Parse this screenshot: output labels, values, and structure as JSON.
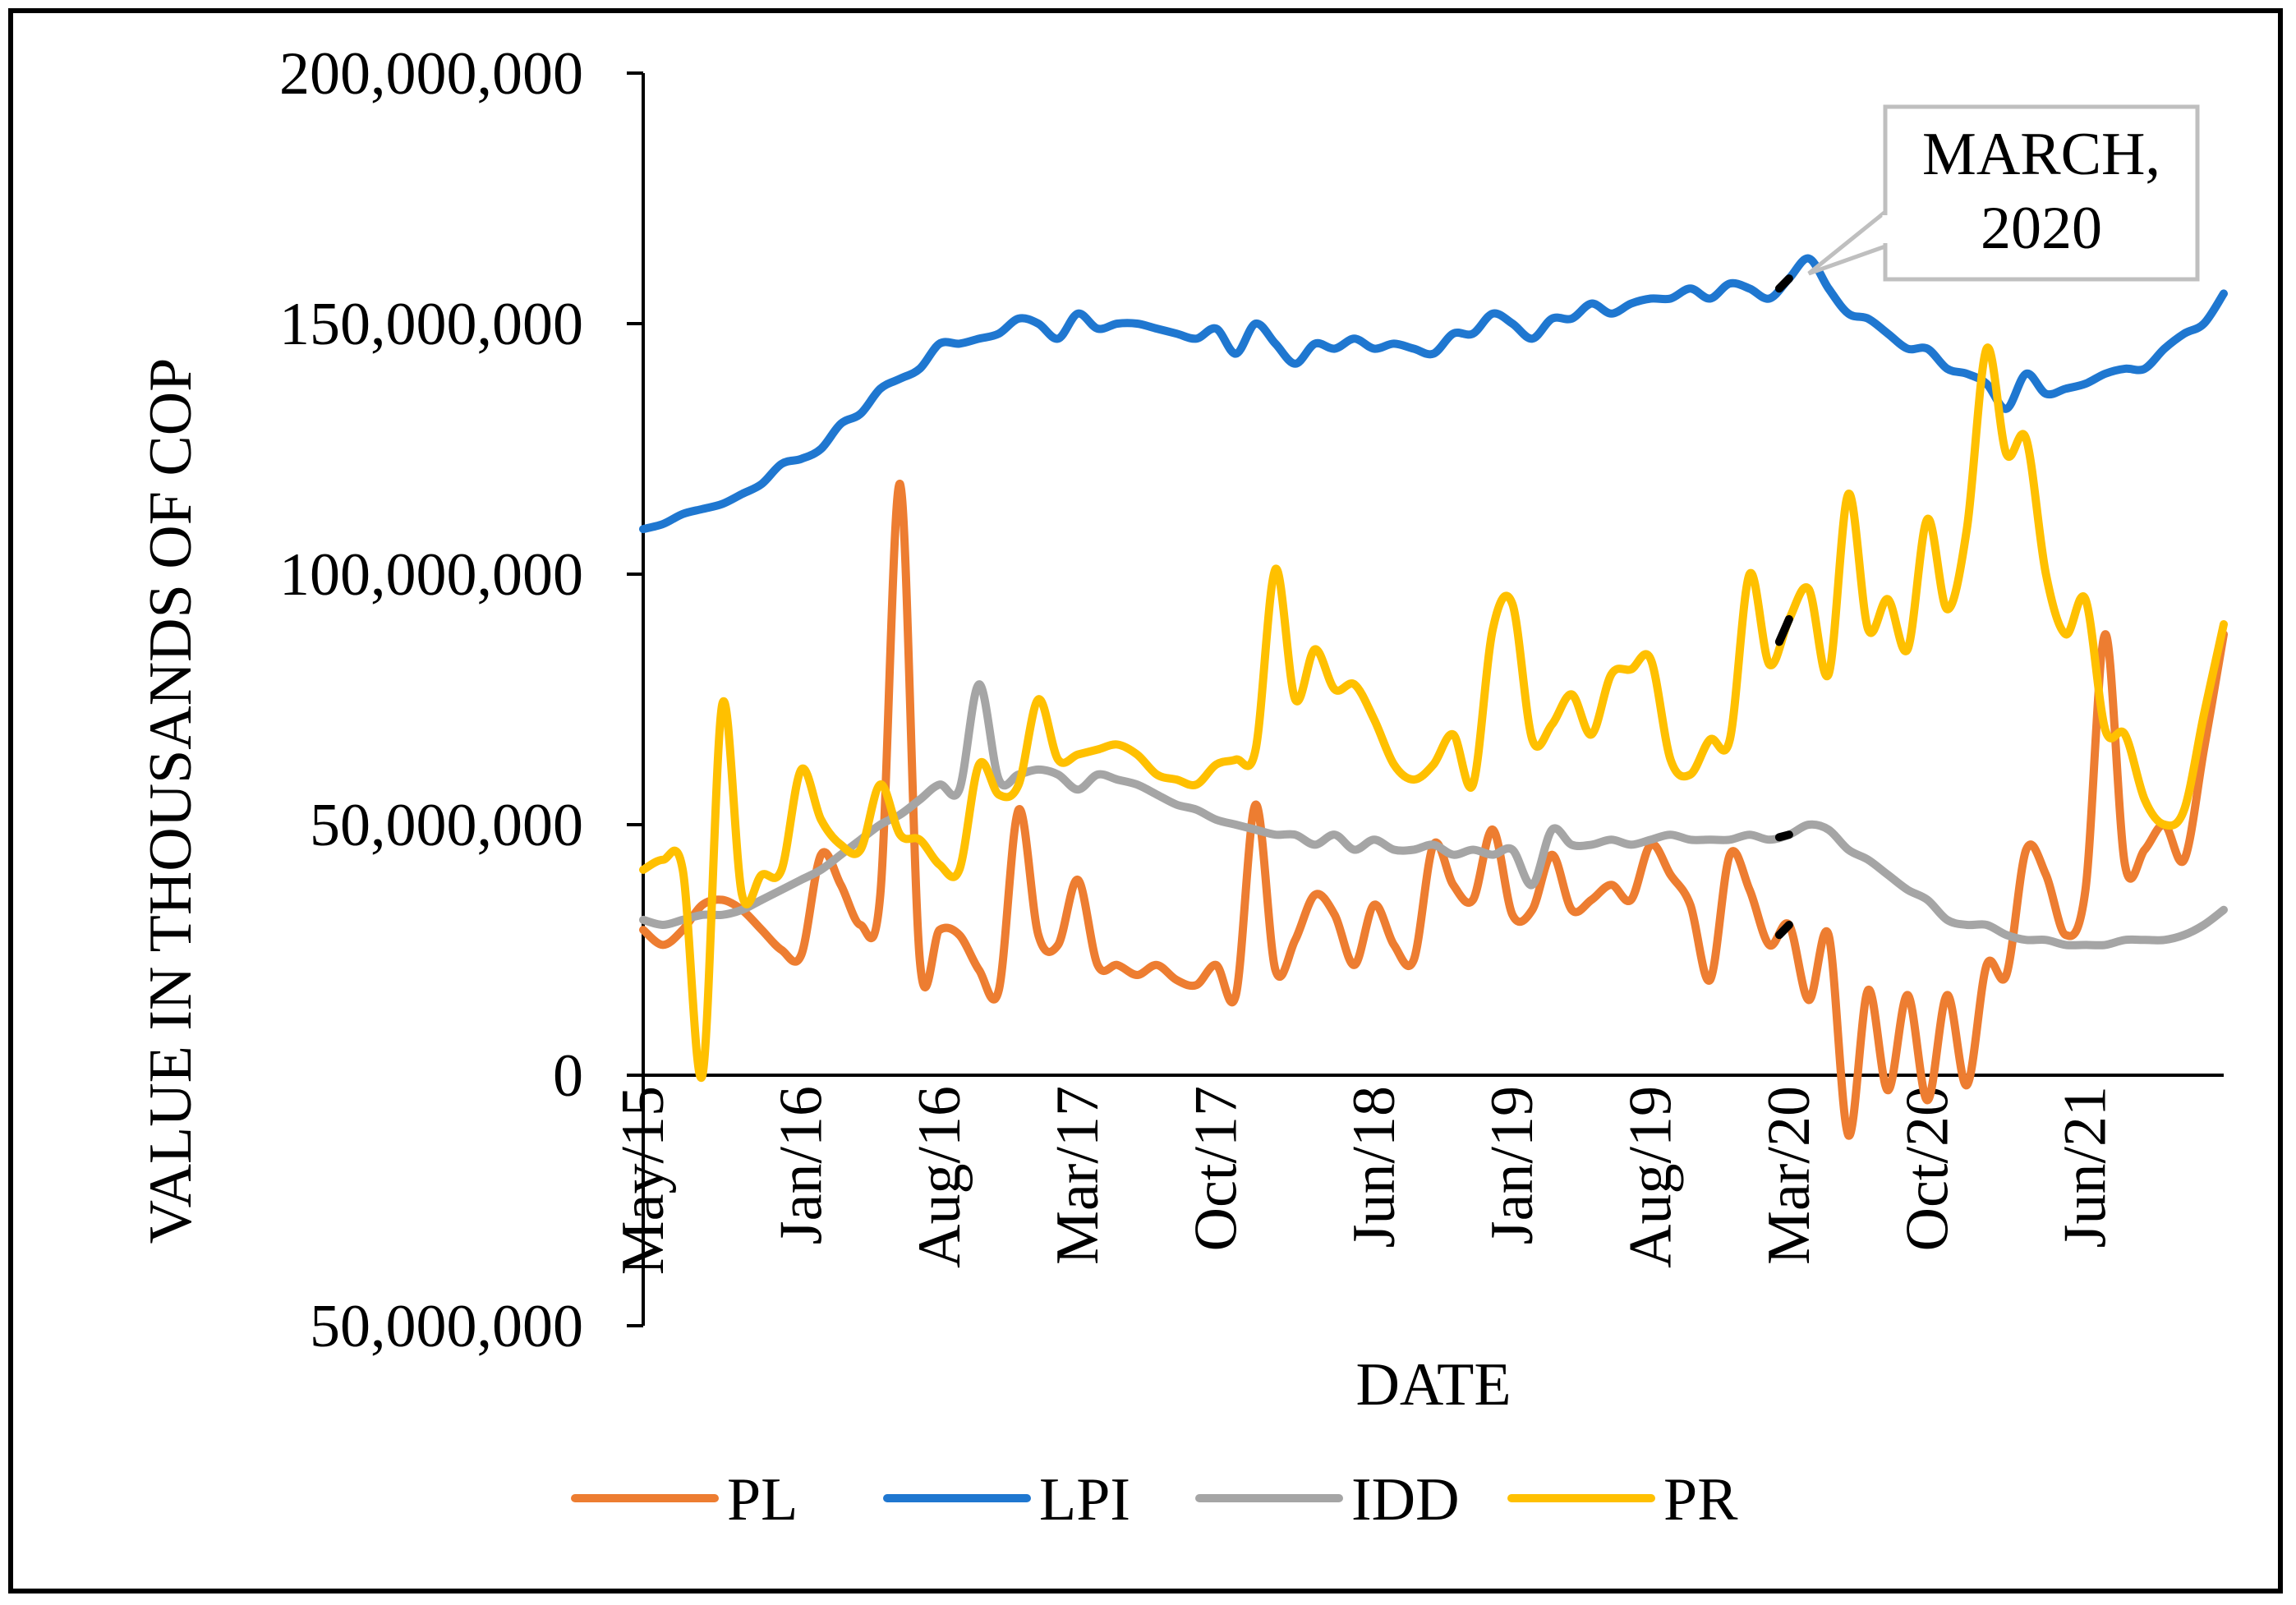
{
  "chart_data": {
    "type": "line",
    "xlabel": "DATE",
    "ylabel": "VALUE IN THOUSANDS OF COP",
    "ylim": [
      -50000000,
      200000000
    ],
    "y_ticks": [
      {
        "value": 200000000,
        "label": "200,000,000",
        "color": "#000000"
      },
      {
        "value": 150000000,
        "label": "150,000,000",
        "color": "#000000"
      },
      {
        "value": 100000000,
        "label": "100,000,000",
        "color": "#000000"
      },
      {
        "value": 50000000,
        "label": "50,000,000",
        "color": "#000000"
      },
      {
        "value": 0,
        "label": "0",
        "color": "#000000"
      },
      {
        "value": -50000000,
        "label": "50,000,000",
        "color": "#ff0000"
      }
    ],
    "x_ticks": [
      {
        "index": 0,
        "label": "May/15"
      },
      {
        "index": 8,
        "label": "Jan/16"
      },
      {
        "index": 15,
        "label": "Aug/16"
      },
      {
        "index": 22,
        "label": "Mar/17"
      },
      {
        "index": 29,
        "label": "Oct/17"
      },
      {
        "index": 37,
        "label": "Jun/18"
      },
      {
        "index": 44,
        "label": "Jan/19"
      },
      {
        "index": 51,
        "label": "Aug/19"
      },
      {
        "index": 58,
        "label": "Mar/20"
      },
      {
        "index": 65,
        "label": "Oct/20"
      },
      {
        "index": 73,
        "label": "Jun/21"
      }
    ],
    "x_count": 81,
    "legend_position": "bottom",
    "colors": {
      "PL": "#ed7d31",
      "LPI": "#1f77d0",
      "IDD": "#a5a5a5",
      "PR": "#ffc000",
      "highlight": "#000000"
    },
    "highlight_index": 58,
    "annotation": {
      "line1": "MARCH,",
      "line2": "2020",
      "index": 59,
      "value": 160000000
    },
    "series": [
      {
        "name": "PL",
        "color": "#ed7d31",
        "values": [
          29000000,
          26000000,
          29000000,
          34000000,
          35000000,
          33000000,
          29000000,
          25000000,
          24000000,
          44000000,
          38000000,
          30000000,
          36000000,
          118000000,
          23000000,
          29000000,
          28000000,
          21000000,
          17000000,
          53000000,
          28000000,
          26000000,
          39000000,
          22000000,
          22000000,
          20000000,
          22000000,
          19000000,
          18000000,
          22000000,
          16000000,
          54000000,
          21000000,
          27000000,
          36000000,
          32000000,
          22000000,
          34000000,
          26000000,
          23000000,
          46000000,
          38000000,
          35000000,
          49000000,
          32000000,
          33000000,
          44000000,
          33000000,
          35000000,
          38000000,
          35000000,
          46000000,
          40000000,
          34000000,
          19000000,
          44000000,
          37000000,
          26000000,
          30000000,
          15000000,
          28000000,
          -12000000,
          17000000,
          -3000000,
          16000000,
          -5000000,
          16000000,
          -2000000,
          22000000,
          20000000,
          45000000,
          40000000,
          28000000,
          37000000,
          88000000,
          42000000,
          45000000,
          50000000,
          43000000,
          65000000,
          88000000
        ]
      },
      {
        "name": "LPI",
        "color": "#1f77d0",
        "values": [
          109000000,
          110000000,
          112000000,
          113000000,
          114000000,
          116000000,
          118000000,
          122000000,
          123000000,
          125000000,
          130000000,
          132000000,
          137000000,
          139000000,
          141000000,
          146000000,
          146000000,
          147000000,
          148000000,
          151000000,
          150000000,
          147000000,
          152000000,
          149000000,
          150000000,
          150000000,
          149000000,
          148000000,
          147000000,
          149000000,
          144000000,
          150000000,
          146000000,
          142000000,
          146000000,
          145000000,
          147000000,
          145000000,
          146000000,
          145000000,
          144000000,
          148000000,
          148000000,
          152000000,
          150000000,
          147000000,
          151000000,
          151000000,
          154000000,
          152000000,
          154000000,
          155000000,
          155000000,
          157000000,
          155000000,
          158000000,
          157000000,
          155000000,
          159000000,
          163000000,
          157000000,
          152000000,
          151000000,
          148000000,
          145000000,
          145000000,
          141000000,
          140000000,
          138000000,
          133000000,
          140000000,
          136000000,
          137000000,
          138000000,
          140000000,
          141000000,
          141000000,
          145000000,
          148000000,
          150000000,
          156000000
        ]
      },
      {
        "name": "IDD",
        "color": "#a5a5a5",
        "values": [
          31000000,
          30000000,
          31000000,
          32000000,
          32000000,
          33000000,
          35000000,
          37000000,
          39000000,
          41000000,
          44000000,
          47000000,
          50000000,
          52000000,
          55000000,
          58000000,
          57000000,
          78000000,
          59000000,
          60000000,
          61000000,
          60000000,
          57000000,
          60000000,
          59000000,
          58000000,
          56000000,
          54000000,
          53000000,
          51000000,
          50000000,
          49000000,
          48000000,
          48000000,
          46000000,
          48000000,
          45000000,
          47000000,
          45000000,
          45000000,
          46000000,
          44000000,
          45000000,
          44000000,
          45000000,
          38000000,
          49000000,
          46000000,
          46000000,
          47000000,
          46000000,
          47000000,
          48000000,
          47000000,
          47000000,
          47000000,
          48000000,
          47000000,
          48000000,
          50000000,
          49000000,
          45000000,
          43000000,
          40000000,
          37000000,
          35000000,
          31000000,
          30000000,
          30000000,
          28000000,
          27000000,
          27000000,
          26000000,
          26000000,
          26000000,
          27000000,
          27000000,
          27000000,
          28000000,
          30000000,
          33000000
        ]
      },
      {
        "name": "PR",
        "color": "#ffc000",
        "values": [
          41000000,
          43000000,
          41000000,
          0,
          74000000,
          36000000,
          40000000,
          41000000,
          61000000,
          51000000,
          46000000,
          45000000,
          58000000,
          48000000,
          47000000,
          42000000,
          41000000,
          62000000,
          56000000,
          58000000,
          75000000,
          63000000,
          64000000,
          65000000,
          66000000,
          64000000,
          60000000,
          59000000,
          58000000,
          62000000,
          63000000,
          65000000,
          101000000,
          75000000,
          85000000,
          77000000,
          78000000,
          71000000,
          62000000,
          59000000,
          62000000,
          68000000,
          58000000,
          89000000,
          94000000,
          67000000,
          70000000,
          76000000,
          68000000,
          80000000,
          81000000,
          83000000,
          63000000,
          60000000,
          67000000,
          67000000,
          100000000,
          82000000,
          91000000,
          97000000,
          80000000,
          116000000,
          89000000,
          95000000,
          85000000,
          111000000,
          93000000,
          109000000,
          145000000,
          124000000,
          127000000,
          100000000,
          88000000,
          95000000,
          69000000,
          68000000,
          55000000,
          50000000,
          53000000,
          72000000,
          90000000
        ]
      }
    ]
  }
}
